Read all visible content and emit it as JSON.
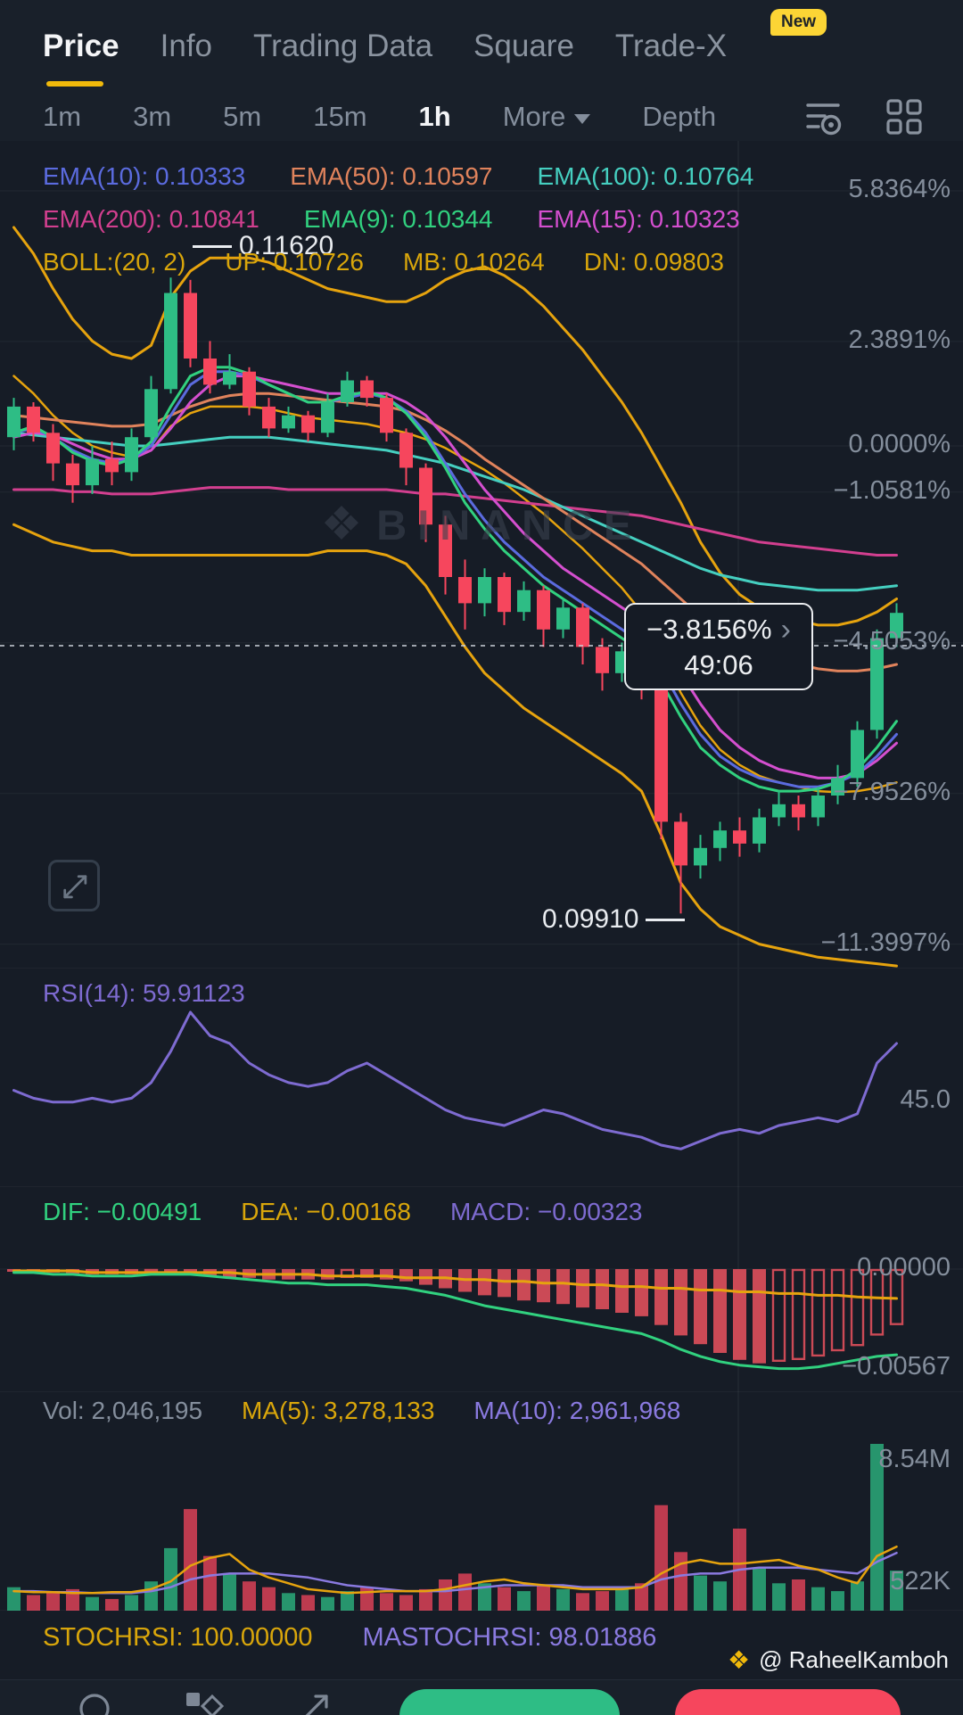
{
  "nav": {
    "items": [
      {
        "label": "Price"
      },
      {
        "label": "Info"
      },
      {
        "label": "Trading Data"
      },
      {
        "label": "Square"
      },
      {
        "label": "Trade-X"
      }
    ],
    "new_badge": "New"
  },
  "timeframes": {
    "items": [
      "1m",
      "3m",
      "5m",
      "15m",
      "1h"
    ],
    "more": "More",
    "depth": "Depth"
  },
  "indicators": {
    "ema10": {
      "text": "EMA(10): 0.10333",
      "color": "#5b6bdf"
    },
    "ema50": {
      "text": "EMA(50): 0.10597",
      "color": "#e0835c"
    },
    "ema100": {
      "text": "EMA(100): 0.10764",
      "color": "#45cfc0"
    },
    "ema200": {
      "text": "EMA(200): 0.10841",
      "color": "#d23f8f"
    },
    "ema9": {
      "text": "EMA(9): 0.10344",
      "color": "#31d17f"
    },
    "ema15": {
      "text": "EMA(15): 0.10323",
      "color": "#d44fcf"
    },
    "boll": {
      "text": "BOLL:(20, 2)",
      "color": "#d9a60b"
    },
    "boll_up": {
      "text": "UP: 0.10726",
      "color": "#d9a60b"
    },
    "boll_mb": {
      "text": "MB: 0.10264",
      "color": "#d9a60b"
    },
    "boll_dn": {
      "text": "DN: 0.09803",
      "color": "#d9a60b"
    },
    "rsi": {
      "text": "RSI(14): 59.91123",
      "color": "#7e6bd1"
    },
    "dif": {
      "text": "DIF: −0.00491",
      "color": "#31d17f"
    },
    "dea": {
      "text": "DEA: −0.00168",
      "color": "#d9a60b"
    },
    "macd": {
      "text": "MACD: −0.00323",
      "color": "#7e6bd1"
    },
    "vol": {
      "text": "Vol: 2,046,195",
      "color": "#848e9c"
    },
    "vol_ma5": {
      "text": "MA(5): 3,278,133",
      "color": "#d9a60b"
    },
    "vol_ma10": {
      "text": "MA(10): 2,961,968",
      "color": "#8a7ae0"
    },
    "stochrsi": {
      "text": "STOCHRSI: 100.00000",
      "color": "#d9a60b"
    },
    "mastochrsi": {
      "text": "MASTOCHRSI: 98.01886",
      "color": "#8a7ae0"
    }
  },
  "chart": {
    "high_label": "0.11620",
    "low_label": "0.09910",
    "tooltip": {
      "change": "−3.8156%",
      "chevron": "›",
      "countdown": "49:06"
    },
    "axis_right": {
      "rsi": "45.0",
      "macd_zero": "0.00000",
      "macd_min": "−0.00567",
      "vol_max": "8.54M",
      "vol_min": "522K"
    },
    "watermark": "BINANCE"
  },
  "footer": {
    "watermark": "@ RaheelKamboh"
  },
  "chart_data": {
    "type": "candlestick",
    "note": "main-chart values are % change relative to the 0.0000% axis reference",
    "colors": {
      "up": "#2ebd85",
      "down": "#f6465d"
    },
    "main": {
      "axis": [
        {
          "text": "5.8364%",
          "pct": 5.8364
        },
        {
          "text": "2.3891%",
          "pct": 2.3891
        },
        {
          "text": "0.0000%",
          "pct": 0
        },
        {
          "text": "−1.0581%",
          "pct": -1.0581
        },
        {
          "text": "−4.5053%",
          "pct": -4.5053
        },
        {
          "text": "−7.9526%",
          "pct": -7.9526
        },
        {
          "text": "−11.3997%",
          "pct": -11.3997
        }
      ],
      "current_change_pct": -3.8156,
      "candles": [
        [
          0.2,
          0.9,
          1.1,
          -0.1
        ],
        [
          0.9,
          0.3,
          1.0,
          0.1
        ],
        [
          0.3,
          -0.4,
          0.5,
          -0.8
        ],
        [
          -0.4,
          -0.9,
          -0.2,
          -1.3
        ],
        [
          -0.9,
          -0.3,
          0.0,
          -1.1
        ],
        [
          -0.3,
          -0.6,
          0.1,
          -0.9
        ],
        [
          -0.6,
          0.2,
          0.4,
          -0.8
        ],
        [
          0.2,
          1.3,
          1.6,
          0.1
        ],
        [
          1.3,
          3.5,
          3.85,
          1.2
        ],
        [
          3.5,
          2.0,
          3.8,
          1.8
        ],
        [
          2.0,
          1.4,
          2.4,
          1.2
        ],
        [
          1.4,
          1.7,
          2.1,
          1.3
        ],
        [
          1.7,
          0.9,
          1.8,
          0.7
        ],
        [
          0.9,
          0.4,
          1.1,
          0.2
        ],
        [
          0.4,
          0.7,
          0.9,
          0.3
        ],
        [
          0.7,
          0.3,
          0.8,
          0.1
        ],
        [
          0.3,
          1.0,
          1.2,
          0.2
        ],
        [
          1.0,
          1.5,
          1.7,
          0.9
        ],
        [
          1.5,
          1.1,
          1.6,
          0.9
        ],
        [
          1.1,
          0.3,
          1.2,
          0.1
        ],
        [
          0.3,
          -0.5,
          0.4,
          -0.9
        ],
        [
          -0.5,
          -1.8,
          -0.4,
          -2.2
        ],
        [
          -1.8,
          -3.0,
          -1.6,
          -3.4
        ],
        [
          -3.0,
          -3.6,
          -2.6,
          -4.2
        ],
        [
          -3.6,
          -3.0,
          -2.8,
          -3.9
        ],
        [
          -3.0,
          -3.8,
          -2.9,
          -4.1
        ],
        [
          -3.8,
          -3.3,
          -3.1,
          -4.0
        ],
        [
          -3.3,
          -4.2,
          -3.2,
          -4.6
        ],
        [
          -4.2,
          -3.7,
          -3.5,
          -4.4
        ],
        [
          -3.7,
          -4.6,
          -3.6,
          -5.0
        ],
        [
          -4.6,
          -5.2,
          -4.4,
          -5.6
        ],
        [
          -5.2,
          -4.7,
          -4.5,
          -5.4
        ],
        [
          -4.7,
          -5.5,
          -4.6,
          -5.8
        ],
        [
          -5.5,
          -8.6,
          -5.4,
          -9.0
        ],
        [
          -8.6,
          -9.6,
          -8.4,
          -10.7
        ],
        [
          -9.6,
          -9.2,
          -8.9,
          -9.9
        ],
        [
          -9.2,
          -8.8,
          -8.6,
          -9.5
        ],
        [
          -8.8,
          -9.1,
          -8.5,
          -9.4
        ],
        [
          -9.1,
          -8.5,
          -8.3,
          -9.3
        ],
        [
          -8.5,
          -8.2,
          -7.9,
          -8.7
        ],
        [
          -8.2,
          -8.5,
          -8.0,
          -8.8
        ],
        [
          -8.5,
          -8.0,
          -7.8,
          -8.7
        ],
        [
          -8.0,
          -7.6,
          -7.3,
          -8.2
        ],
        [
          -7.6,
          -6.5,
          -6.3,
          -7.8
        ],
        [
          -6.5,
          -4.4,
          -4.2,
          -6.7
        ],
        [
          -4.4,
          -3.82,
          -3.6,
          -4.6
        ]
      ],
      "series": {
        "boll_up": [
          5.0,
          4.4,
          3.6,
          2.9,
          2.4,
          2.1,
          2.0,
          2.3,
          3.4,
          4.0,
          4.3,
          4.3,
          4.3,
          4.2,
          4.0,
          3.8,
          3.6,
          3.5,
          3.4,
          3.3,
          3.3,
          3.5,
          3.8,
          4.0,
          4.1,
          3.9,
          3.6,
          3.2,
          2.7,
          2.2,
          1.6,
          1.0,
          0.3,
          -0.5,
          -1.3,
          -2.2,
          -2.9,
          -3.4,
          -3.7,
          -3.9,
          -4.0,
          -4.1,
          -4.1,
          -4.0,
          -3.8,
          -3.5
        ],
        "boll_dn": [
          -1.8,
          -2.0,
          -2.2,
          -2.3,
          -2.4,
          -2.4,
          -2.5,
          -2.5,
          -2.5,
          -2.5,
          -2.5,
          -2.5,
          -2.5,
          -2.5,
          -2.5,
          -2.5,
          -2.4,
          -2.4,
          -2.4,
          -2.5,
          -2.7,
          -3.2,
          -3.9,
          -4.6,
          -5.2,
          -5.6,
          -6.0,
          -6.3,
          -6.6,
          -6.9,
          -7.2,
          -7.5,
          -7.9,
          -8.9,
          -10.0,
          -10.6,
          -11.0,
          -11.2,
          -11.4,
          -11.5,
          -11.6,
          -11.7,
          -11.75,
          -11.8,
          -11.85,
          -11.9
        ],
        "ema10": [
          0.3,
          0.4,
          0.2,
          -0.1,
          -0.3,
          -0.4,
          -0.3,
          0.0,
          0.7,
          1.4,
          1.7,
          1.7,
          1.6,
          1.4,
          1.2,
          1.0,
          1.0,
          1.1,
          1.2,
          1.1,
          0.8,
          0.3,
          -0.4,
          -1.1,
          -1.7,
          -2.2,
          -2.6,
          -3.0,
          -3.3,
          -3.6,
          -3.9,
          -4.2,
          -4.5,
          -5.1,
          -5.9,
          -6.6,
          -7.1,
          -7.4,
          -7.6,
          -7.7,
          -7.8,
          -7.8,
          -7.7,
          -7.5,
          -7.1,
          -6.6
        ],
        "ema9": [
          0.3,
          0.45,
          0.2,
          -0.15,
          -0.35,
          -0.45,
          -0.3,
          0.1,
          0.9,
          1.6,
          1.8,
          1.8,
          1.65,
          1.4,
          1.2,
          1.0,
          1.0,
          1.15,
          1.25,
          1.1,
          0.75,
          0.2,
          -0.5,
          -1.3,
          -1.9,
          -2.4,
          -2.8,
          -3.2,
          -3.5,
          -3.8,
          -4.1,
          -4.4,
          -4.7,
          -5.4,
          -6.2,
          -6.9,
          -7.3,
          -7.6,
          -7.8,
          -7.9,
          -7.9,
          -7.85,
          -7.7,
          -7.4,
          -6.9,
          -6.3
        ],
        "ema15": [
          0.2,
          0.3,
          0.25,
          0.05,
          -0.15,
          -0.3,
          -0.3,
          -0.1,
          0.4,
          1.0,
          1.4,
          1.6,
          1.6,
          1.5,
          1.4,
          1.3,
          1.2,
          1.2,
          1.2,
          1.2,
          1.0,
          0.7,
          0.2,
          -0.4,
          -1.0,
          -1.5,
          -2.0,
          -2.4,
          -2.8,
          -3.1,
          -3.4,
          -3.7,
          -4.0,
          -4.5,
          -5.2,
          -5.9,
          -6.5,
          -6.9,
          -7.2,
          -7.4,
          -7.5,
          -7.6,
          -7.6,
          -7.5,
          -7.2,
          -6.8
        ],
        "ema50": [
          0.7,
          0.65,
          0.6,
          0.55,
          0.5,
          0.45,
          0.45,
          0.5,
          0.7,
          0.9,
          1.05,
          1.15,
          1.2,
          1.2,
          1.15,
          1.1,
          1.05,
          1.0,
          0.95,
          0.9,
          0.8,
          0.6,
          0.35,
          0.05,
          -0.3,
          -0.6,
          -0.9,
          -1.2,
          -1.5,
          -1.8,
          -2.1,
          -2.4,
          -2.7,
          -3.1,
          -3.5,
          -3.9,
          -4.2,
          -4.5,
          -4.7,
          -4.9,
          -5.0,
          -5.1,
          -5.15,
          -5.15,
          -5.1,
          -5.0
        ],
        "ema100": [
          0.3,
          0.25,
          0.2,
          0.15,
          0.1,
          0.05,
          0.0,
          0.0,
          0.05,
          0.1,
          0.15,
          0.2,
          0.2,
          0.2,
          0.15,
          0.1,
          0.05,
          0.0,
          -0.05,
          -0.1,
          -0.2,
          -0.3,
          -0.4,
          -0.55,
          -0.7,
          -0.85,
          -1.0,
          -1.2,
          -1.4,
          -1.6,
          -1.8,
          -2.0,
          -2.2,
          -2.4,
          -2.6,
          -2.8,
          -2.95,
          -3.05,
          -3.15,
          -3.2,
          -3.25,
          -3.3,
          -3.3,
          -3.3,
          -3.25,
          -3.2
        ],
        "ema200": [
          -1.0,
          -1.0,
          -1.0,
          -1.05,
          -1.05,
          -1.1,
          -1.1,
          -1.1,
          -1.05,
          -1.0,
          -0.95,
          -0.95,
          -0.95,
          -0.95,
          -1.0,
          -1.0,
          -1.0,
          -1.0,
          -1.0,
          -1.0,
          -1.05,
          -1.1,
          -1.1,
          -1.15,
          -1.2,
          -1.25,
          -1.3,
          -1.35,
          -1.4,
          -1.45,
          -1.5,
          -1.55,
          -1.6,
          -1.7,
          -1.8,
          -1.9,
          -2.0,
          -2.1,
          -2.2,
          -2.25,
          -2.3,
          -2.35,
          -2.4,
          -2.45,
          -2.5,
          -2.5
        ]
      }
    },
    "rsi": {
      "range": [
        26,
        68
      ],
      "last": 59.91123,
      "values": [
        48,
        46,
        45,
        45,
        46,
        45,
        46,
        50,
        58,
        68,
        62,
        60,
        55,
        52,
        50,
        49,
        50,
        53,
        55,
        52,
        49,
        46,
        43,
        41,
        40,
        39,
        41,
        43,
        42,
        40,
        38,
        37,
        36,
        34,
        33,
        35,
        37,
        38,
        37,
        39,
        40,
        41,
        40,
        42,
        55,
        60
      ]
    },
    "macd": {
      "scale_min": -0.00567,
      "hist": [
        -0.0001,
        -0.0002,
        -0.0002,
        -0.0003,
        -0.0003,
        -0.0003,
        -0.0003,
        -0.0002,
        -0.0002,
        -0.0003,
        -0.0004,
        -0.0005,
        -0.0005,
        -0.0006,
        -0.0006,
        -0.0006,
        -0.0006,
        -0.0005,
        -0.0005,
        -0.0006,
        -0.0007,
        -0.0009,
        -0.0011,
        -0.0013,
        -0.0015,
        -0.0016,
        -0.0018,
        -0.0019,
        -0.002,
        -0.0022,
        -0.0023,
        -0.0025,
        -0.0027,
        -0.0032,
        -0.0038,
        -0.0043,
        -0.0048,
        -0.0052,
        -0.0054,
        -0.0053,
        -0.0052,
        -0.005,
        -0.0047,
        -0.0044,
        -0.0038,
        -0.0032
      ],
      "dif": [
        -0.0002,
        -0.0002,
        -0.0003,
        -0.0003,
        -0.0004,
        -0.0004,
        -0.0004,
        -0.0003,
        -0.0003,
        -0.0003,
        -0.0004,
        -0.0005,
        -0.0006,
        -0.0007,
        -0.0008,
        -0.0008,
        -0.0009,
        -0.0009,
        -0.0009,
        -0.001,
        -0.0011,
        -0.0013,
        -0.0015,
        -0.0018,
        -0.0021,
        -0.0023,
        -0.0025,
        -0.0027,
        -0.0029,
        -0.0031,
        -0.0033,
        -0.0035,
        -0.0037,
        -0.0041,
        -0.0046,
        -0.005,
        -0.0053,
        -0.0055,
        -0.0056,
        -0.0057,
        -0.0057,
        -0.0056,
        -0.0054,
        -0.0052,
        -0.005,
        -0.00491
      ],
      "dea": [
        -0.0001,
        -0.0001,
        -0.0001,
        -0.0001,
        -0.0002,
        -0.0002,
        -0.0002,
        -0.0002,
        -0.0002,
        -0.0002,
        -0.0002,
        -0.0002,
        -0.0003,
        -0.0003,
        -0.0003,
        -0.0003,
        -0.0004,
        -0.0004,
        -0.0004,
        -0.0004,
        -0.0005,
        -0.0005,
        -0.0005,
        -0.0006,
        -0.0006,
        -0.0007,
        -0.0007,
        -0.0008,
        -0.0008,
        -0.0009,
        -0.0009,
        -0.001,
        -0.001,
        -0.0011,
        -0.0011,
        -0.0012,
        -0.0012,
        -0.0013,
        -0.0013,
        -0.0014,
        -0.0014,
        -0.0015,
        -0.0015,
        -0.0016,
        -0.00165,
        -0.00168
      ]
    },
    "volume": {
      "max_label_value": 8.54,
      "bars": [
        1.2,
        0.8,
        0.9,
        1.1,
        0.7,
        0.6,
        0.8,
        1.5,
        3.2,
        5.2,
        2.8,
        1.9,
        1.5,
        1.2,
        0.9,
        0.8,
        0.7,
        1.0,
        1.2,
        0.9,
        0.8,
        1.1,
        1.6,
        1.9,
        1.4,
        1.2,
        1.0,
        1.3,
        1.1,
        0.9,
        1.0,
        1.2,
        1.4,
        5.4,
        3.0,
        1.8,
        1.5,
        4.2,
        2.2,
        1.4,
        1.6,
        1.2,
        1.0,
        1.5,
        8.54,
        2.05
      ],
      "ma5": [
        1.0,
        0.95,
        0.95,
        0.9,
        0.9,
        0.95,
        0.95,
        1.1,
        1.5,
        2.3,
        2.7,
        2.9,
        2.1,
        1.7,
        1.4,
        1.1,
        1.0,
        0.9,
        0.95,
        1.0,
        1.0,
        1.0,
        1.1,
        1.3,
        1.5,
        1.6,
        1.4,
        1.3,
        1.2,
        1.1,
        1.1,
        1.1,
        1.2,
        1.9,
        2.4,
        2.6,
        2.4,
        2.4,
        2.5,
        2.6,
        2.3,
        2.1,
        1.7,
        1.4,
        2.8,
        3.28
      ],
      "ma10": [
        1.0,
        1.0,
        0.95,
        0.95,
        0.9,
        0.9,
        0.9,
        1.0,
        1.2,
        1.6,
        1.8,
        1.9,
        1.9,
        1.9,
        1.8,
        1.7,
        1.5,
        1.3,
        1.2,
        1.1,
        1.0,
        1.0,
        1.0,
        1.1,
        1.2,
        1.3,
        1.3,
        1.3,
        1.3,
        1.2,
        1.2,
        1.2,
        1.2,
        1.6,
        1.8,
        1.9,
        1.9,
        2.1,
        2.2,
        2.2,
        2.2,
        2.1,
        2.0,
        1.9,
        2.5,
        2.96
      ]
    }
  }
}
